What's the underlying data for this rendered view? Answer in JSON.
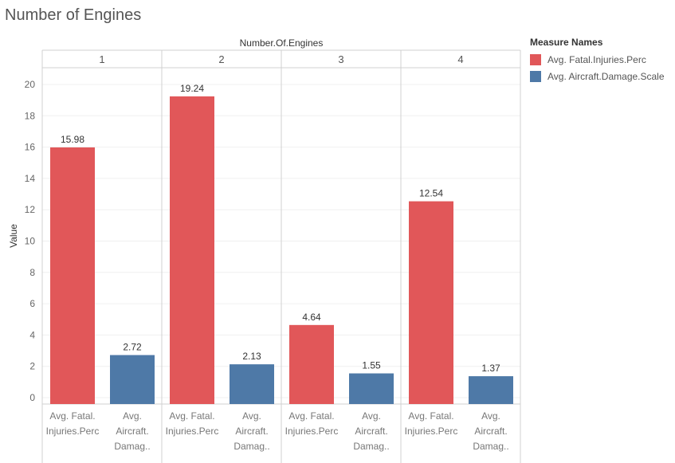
{
  "chart_data": {
    "type": "bar",
    "title": "Number of Engines",
    "column_header": "Number.Of.Engines",
    "ylabel": "Value",
    "ylim": [
      0,
      21
    ],
    "yticks": [
      0,
      2,
      4,
      6,
      8,
      10,
      12,
      14,
      16,
      18,
      20
    ],
    "grid": true,
    "legend_position": "right",
    "panels": [
      "1",
      "2",
      "3",
      "4"
    ],
    "category_labels": [
      [
        "Avg. Fatal.",
        "Injuries.Perc"
      ],
      [
        "Avg.",
        "Aircraft.",
        "Damag.."
      ]
    ],
    "series": [
      {
        "name": "Avg. Fatal.Injuries.Perc",
        "color": "#e15759",
        "values": [
          15.98,
          19.24,
          4.64,
          12.54
        ]
      },
      {
        "name": "Avg. Aircraft.Damage.Scale",
        "color": "#4e79a7",
        "values": [
          2.72,
          2.13,
          1.55,
          1.37
        ]
      }
    ]
  },
  "legend": {
    "title": "Measure Names",
    "items": [
      {
        "label": "Avg. Fatal.Injuries.Perc",
        "color": "#e15759"
      },
      {
        "label": "Avg. Aircraft.Damage.Scale",
        "color": "#4e79a7"
      }
    ]
  }
}
